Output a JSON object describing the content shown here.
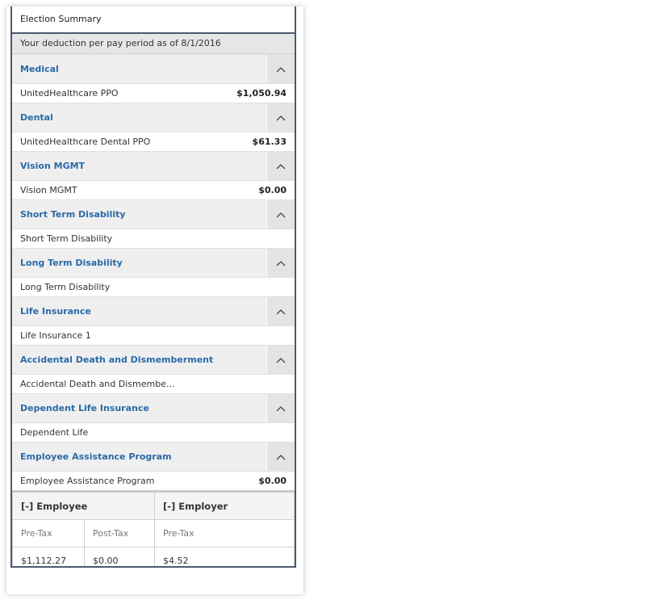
{
  "title": "Election Summary",
  "subhead": "Your deduction per pay period as of 8/1/2016",
  "sections": [
    {
      "title": "Medical",
      "item": "UnitedHealthcare PPO",
      "amount": "$1,050.94"
    },
    {
      "title": "Dental",
      "item": "UnitedHealthcare Dental PPO",
      "amount": "$61.33"
    },
    {
      "title": "Vision MGMT",
      "item": "Vision MGMT",
      "amount": "$0.00"
    },
    {
      "title": "Short Term Disability",
      "item": "Short Term Disability",
      "amount": ""
    },
    {
      "title": "Long Term Disability",
      "item": "Long Term Disability",
      "amount": ""
    },
    {
      "title": "Life Insurance",
      "item": "Life Insurance 1",
      "amount": ""
    },
    {
      "title": "Accidental Death and Dismemberment",
      "item": "Accidental Death and Dismembe...",
      "amount": ""
    },
    {
      "title": "Dependent Life Insurance",
      "item": "Dependent Life",
      "amount": ""
    },
    {
      "title": "Employee Assistance Program",
      "item": "Employee Assistance Program",
      "amount": "$0.00"
    }
  ],
  "totals": {
    "employee_header": "[-] Employee",
    "employer_header": "[-] Employer",
    "employee_pretax_label": "Pre-Tax",
    "employee_posttax_label": "Post-Tax",
    "employer_pretax_label": "Pre-Tax",
    "employee_pretax_value": "$1,112.27",
    "employee_posttax_value": "$0.00",
    "employer_pretax_value": "$4.52"
  },
  "icons": {
    "collapse": "chevron-up-icon"
  },
  "colors": {
    "section_title": "#2a6aa8",
    "border": "#4a5a6e"
  }
}
